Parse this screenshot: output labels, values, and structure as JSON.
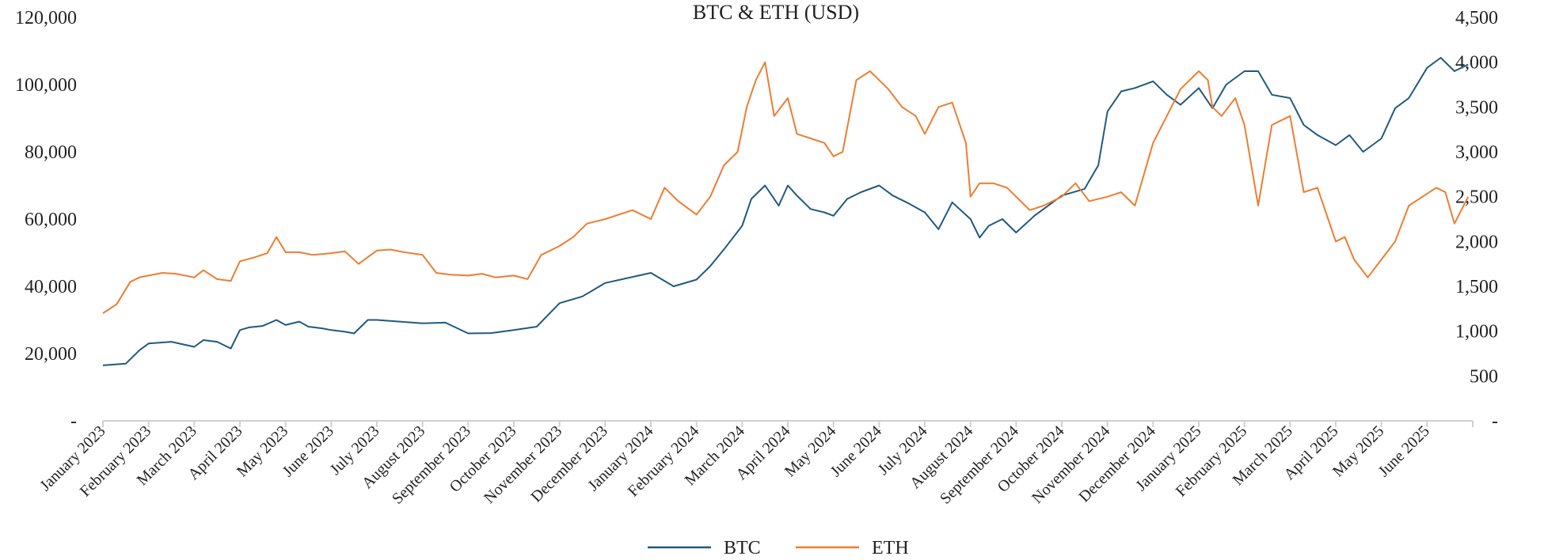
{
  "chart_data": {
    "type": "line",
    "title": "BTC & ETH (USD)",
    "x_labels": [
      "January 2023",
      "February 2023",
      "March 2023",
      "April 2023",
      "May 2023",
      "June 2023",
      "July 2023",
      "August 2023",
      "September 2023",
      "October 2023",
      "November 2023",
      "December 2023",
      "January 2024",
      "February 2024",
      "March 2024",
      "April 2024",
      "May 2024",
      "June 2024",
      "July 2024",
      "August 2024",
      "September 2024",
      "October 2024",
      "November 2024",
      "December 2024",
      "January 2025",
      "February 2025",
      "March 2025",
      "April 2025",
      "May 2025",
      "June 2025"
    ],
    "y_left": {
      "min": 0,
      "max": 120000,
      "ticks": [
        "-",
        "20,000",
        "40,000",
        "60,000",
        "80,000",
        "100,000",
        "120,000"
      ],
      "tick_values": [
        0,
        20000,
        40000,
        60000,
        80000,
        100000,
        120000
      ]
    },
    "y_right": {
      "min": 0,
      "max": 4500,
      "ticks": [
        "-",
        "500",
        "1,000",
        "1,500",
        "2,000",
        "2,500",
        "3,000",
        "3,500",
        "4,000",
        "4,500"
      ],
      "tick_values": [
        0,
        500,
        1000,
        1500,
        2000,
        2500,
        3000,
        3500,
        4000,
        4500
      ]
    },
    "series": [
      {
        "name": "BTC",
        "axis": "left",
        "color": "#1f5a7e",
        "x": [
          0,
          0.5,
          0.8,
          1,
          1.5,
          2,
          2.2,
          2.5,
          2.8,
          3,
          3.2,
          3.5,
          3.8,
          4,
          4.3,
          4.5,
          4.8,
          5,
          5.3,
          5.5,
          5.8,
          6,
          6.5,
          7,
          7.5,
          8,
          8.5,
          9,
          9.5,
          10,
          10.5,
          11,
          11.5,
          12,
          12.5,
          13,
          13.3,
          13.6,
          14,
          14.2,
          14.5,
          14.8,
          15,
          15.2,
          15.5,
          15.8,
          16,
          16.3,
          16.6,
          17,
          17.3,
          17.6,
          18,
          18.3,
          18.6,
          19,
          19.2,
          19.4,
          19.7,
          20,
          20.4,
          20.8,
          21,
          21.5,
          21.8,
          22,
          22.3,
          22.6,
          23,
          23.3,
          23.6,
          24,
          24.3,
          24.6,
          25,
          25.3,
          25.6,
          26,
          26.3,
          26.6,
          27,
          27.3,
          27.6,
          28,
          28.3,
          28.6,
          29,
          29.3,
          29.6,
          29.9
        ],
        "values": [
          16500,
          17000,
          21000,
          23000,
          23500,
          22000,
          24000,
          23500,
          21500,
          27000,
          27800,
          28200,
          30000,
          28500,
          29500,
          28000,
          27500,
          27000,
          26500,
          26000,
          30000,
          30000,
          29500,
          29000,
          29200,
          26000,
          26100,
          27000,
          28000,
          35000,
          37000,
          41000,
          42500,
          44000,
          40000,
          42000,
          46000,
          51000,
          58000,
          66000,
          70000,
          64000,
          70000,
          67000,
          63000,
          62000,
          61000,
          66000,
          68000,
          70000,
          67000,
          65000,
          62000,
          57000,
          65000,
          60000,
          54500,
          58000,
          60000,
          56000,
          61000,
          65000,
          67000,
          69000,
          76000,
          92000,
          98000,
          99000,
          101000,
          97000,
          94000,
          99000,
          93000,
          100000,
          104000,
          104000,
          97000,
          96000,
          88000,
          85000,
          82000,
          85000,
          80000,
          84000,
          93000,
          96000,
          105000,
          108000,
          104000,
          106000
        ]
      },
      {
        "name": "ETH",
        "axis": "right",
        "color": "#ed7d31",
        "x": [
          0,
          0.3,
          0.6,
          0.8,
          1,
          1.3,
          1.6,
          2,
          2.2,
          2.5,
          2.8,
          3,
          3.3,
          3.6,
          3.8,
          4,
          4.3,
          4.6,
          5,
          5.3,
          5.6,
          6,
          6.3,
          6.6,
          7,
          7.3,
          7.6,
          8,
          8.3,
          8.6,
          9,
          9.3,
          9.6,
          10,
          10.3,
          10.6,
          11,
          11.3,
          11.6,
          12,
          12.3,
          12.6,
          13,
          13.3,
          13.6,
          13.9,
          14.1,
          14.3,
          14.5,
          14.7,
          15,
          15.2,
          15.5,
          15.8,
          16,
          16.2,
          16.5,
          16.8,
          17,
          17.2,
          17.5,
          17.8,
          18,
          18.3,
          18.6,
          18.9,
          19,
          19.2,
          19.5,
          19.8,
          20,
          20.3,
          20.6,
          21,
          21.3,
          21.6,
          22,
          22.3,
          22.6,
          23,
          23.3,
          23.6,
          24,
          24.2,
          24.3,
          24.5,
          24.8,
          25,
          25.3,
          25.6,
          26,
          26.3,
          26.6,
          27,
          27.2,
          27.4,
          27.7,
          28,
          28.3,
          28.6,
          28.9,
          29.2,
          29.4,
          29.6,
          29.9
        ],
        "values": [
          1200,
          1300,
          1550,
          1600,
          1620,
          1650,
          1640,
          1600,
          1680,
          1580,
          1560,
          1780,
          1820,
          1870,
          2050,
          1880,
          1880,
          1850,
          1870,
          1890,
          1750,
          1900,
          1910,
          1880,
          1850,
          1650,
          1630,
          1620,
          1640,
          1600,
          1620,
          1580,
          1850,
          1950,
          2050,
          2200,
          2250,
          2300,
          2350,
          2250,
          2600,
          2450,
          2300,
          2500,
          2850,
          3000,
          3500,
          3800,
          4000,
          3400,
          3600,
          3200,
          3150,
          3100,
          2950,
          3000,
          3800,
          3900,
          3800,
          3700,
          3500,
          3400,
          3200,
          3500,
          3550,
          3100,
          2500,
          2650,
          2650,
          2600,
          2500,
          2350,
          2400,
          2500,
          2650,
          2450,
          2500,
          2550,
          2400,
          3100,
          3400,
          3700,
          3900,
          3800,
          3500,
          3400,
          3600,
          3300,
          2400,
          3300,
          3400,
          2550,
          2600,
          2000,
          2050,
          1800,
          1600,
          1800,
          2000,
          2400,
          2500,
          2600,
          2550,
          2200,
          2500
        ]
      }
    ],
    "legend": "bottom-center",
    "grid": false
  }
}
